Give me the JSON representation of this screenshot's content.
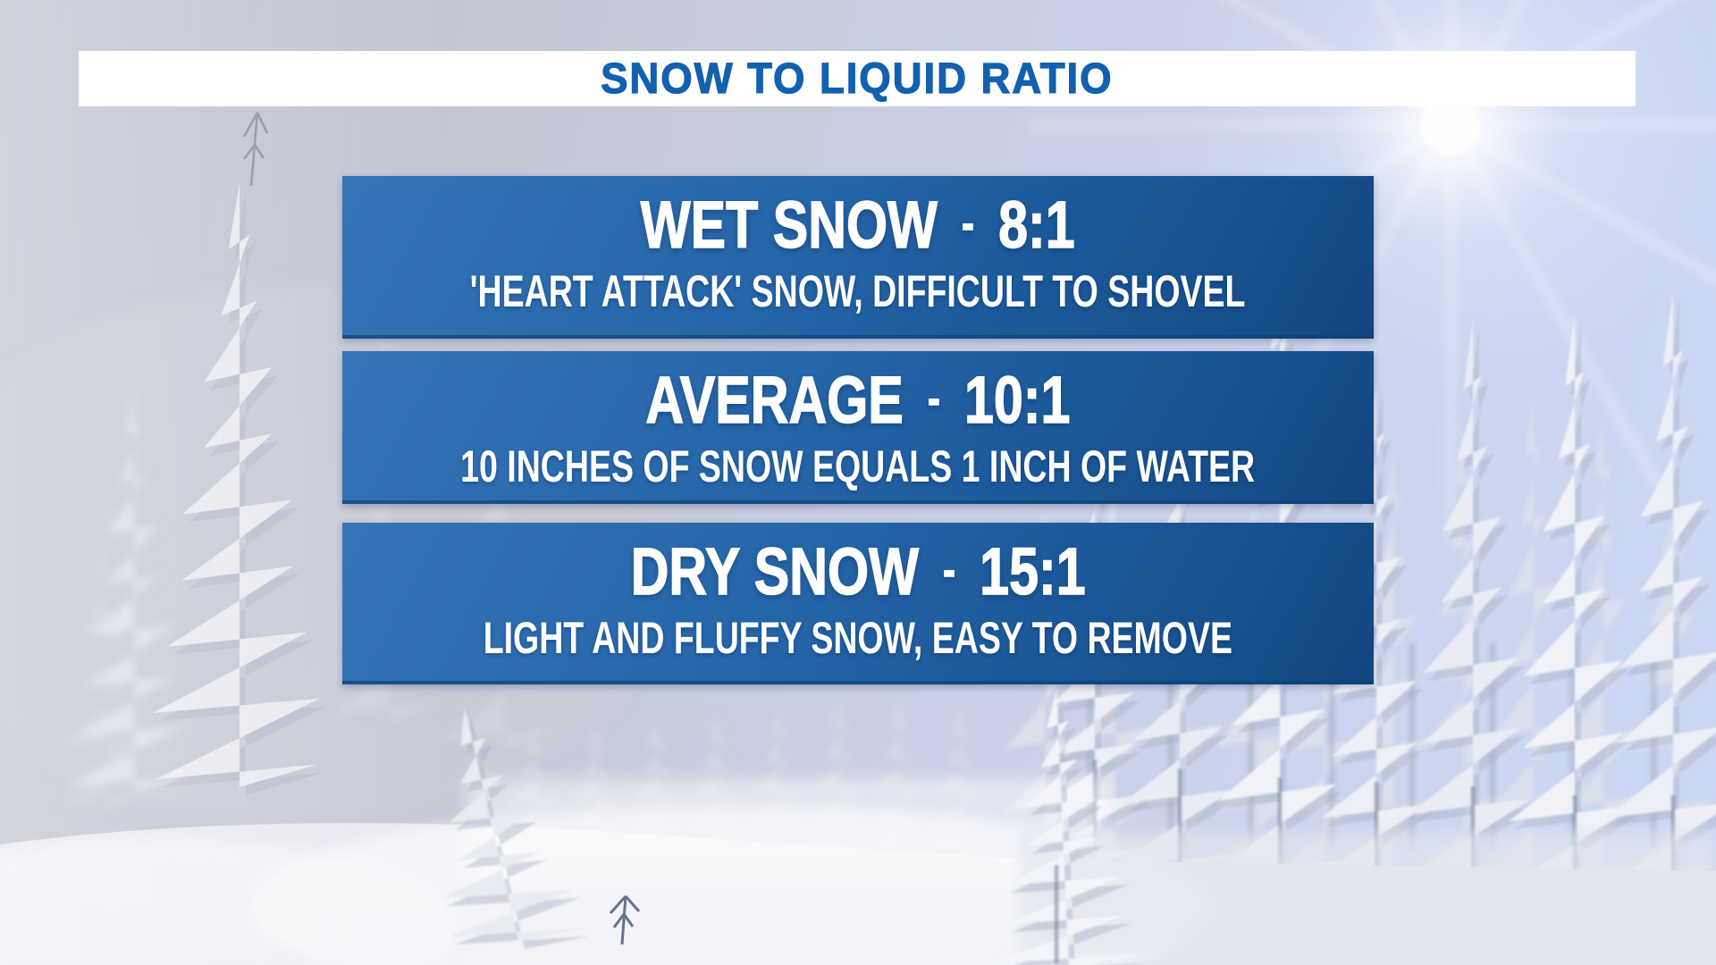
{
  "header": {
    "title": "SNOW TO LIQUID RATIO"
  },
  "panels": [
    {
      "title": "WET SNOW",
      "separator": "-",
      "ratio": "8:1",
      "description": "'HEART ATTACK' SNOW, DIFFICULT TO SHOVEL"
    },
    {
      "title": "AVERAGE",
      "separator": "-",
      "ratio": "10:1",
      "description": "10 INCHES OF SNOW EQUALS 1 INCH OF WATER"
    },
    {
      "title": "DRY SNOW",
      "separator": "-",
      "ratio": "15:1",
      "description": "LIGHT AND FLUFFY SNOW, EASY TO REMOVE"
    }
  ],
  "colors": {
    "title_text": "#1261ae",
    "header_bar": "#ffffff",
    "panel_blue_top": "#3474b6",
    "panel_blue_bottom": "#114580",
    "panel_text": "#ffffff"
  }
}
